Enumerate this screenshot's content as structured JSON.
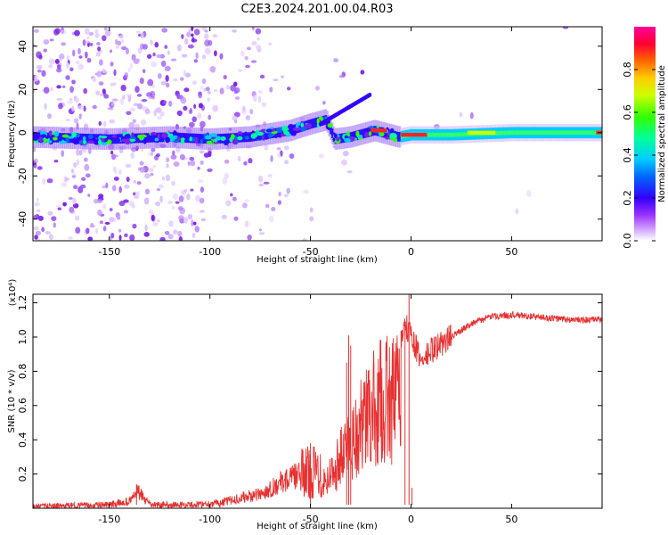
{
  "title": "C2E3.2024.201.00.04.R03",
  "chart_data": [
    {
      "type": "heatmap",
      "xlabel": "Height of straight line (km)",
      "ylabel": "Frequency (Hz)",
      "xlim": [
        -188,
        95
      ],
      "ylim": [
        -50,
        49
      ],
      "xticks": [
        -150,
        -100,
        -50,
        0,
        50
      ],
      "yticks": [
        -40,
        -20,
        0,
        20,
        40
      ],
      "ridge": {
        "x": [
          -188,
          -150,
          -120,
          -100,
          -80,
          -60,
          -50,
          -42,
          -38,
          -30,
          -22,
          -18,
          -10,
          -6,
          0,
          20,
          50,
          95
        ],
        "y": [
          -2,
          -3,
          -2,
          -3,
          -2,
          1,
          4,
          6,
          -3,
          -2,
          0,
          1,
          -1,
          -2,
          -1,
          -1,
          0,
          0
        ]
      },
      "colorbar": {
        "label": "Normalized spectral amplitude",
        "range": [
          0,
          1
        ],
        "ticks": [
          "0.0",
          "0.2",
          "0.4",
          "0.6",
          "0.8"
        ]
      }
    },
    {
      "type": "line",
      "xlabel": "Height of straight line (km)",
      "ylabel": "SNR (10 * v/v)",
      "scale_label": "(x10⁴)",
      "xlim": [
        -188,
        95
      ],
      "ylim": [
        0,
        1.25
      ],
      "xticks": [
        -150,
        -100,
        -50,
        0,
        50
      ],
      "yticks": [
        "0.2",
        "0.4",
        "0.6",
        "0.8",
        "1.0",
        "1.2"
      ],
      "color": "#e83030",
      "envelope": {
        "x": [
          -188,
          -150,
          -140,
          -136,
          -130,
          -110,
          -95,
          -85,
          -75,
          -65,
          -55,
          -45,
          -40,
          -35,
          -30,
          -25,
          -20,
          -15,
          -10,
          -5,
          -2,
          0,
          5,
          10,
          20,
          30,
          40,
          50,
          60,
          80,
          95
        ],
        "y": [
          0.01,
          0.02,
          0.04,
          0.1,
          0.02,
          0.02,
          0.03,
          0.06,
          0.08,
          0.15,
          0.2,
          0.22,
          0.3,
          0.45,
          0.6,
          0.72,
          0.85,
          0.95,
          0.98,
          1.0,
          1.05,
          1.02,
          0.85,
          0.92,
          1.0,
          1.08,
          1.12,
          1.13,
          1.12,
          1.1,
          1.1
        ]
      },
      "spikes": [
        {
          "x": -136.5,
          "y": 0.14
        },
        {
          "x": -50,
          "y": 0.38
        },
        {
          "x": -32,
          "y": 0.85
        },
        {
          "x": -30,
          "y": 0.95
        },
        {
          "x": -31,
          "y": 1.01
        },
        {
          "x": -3,
          "y": 1.08
        },
        {
          "x": -1,
          "y": 1.25
        },
        {
          "x": 0.5,
          "y": 0.12
        }
      ]
    }
  ]
}
